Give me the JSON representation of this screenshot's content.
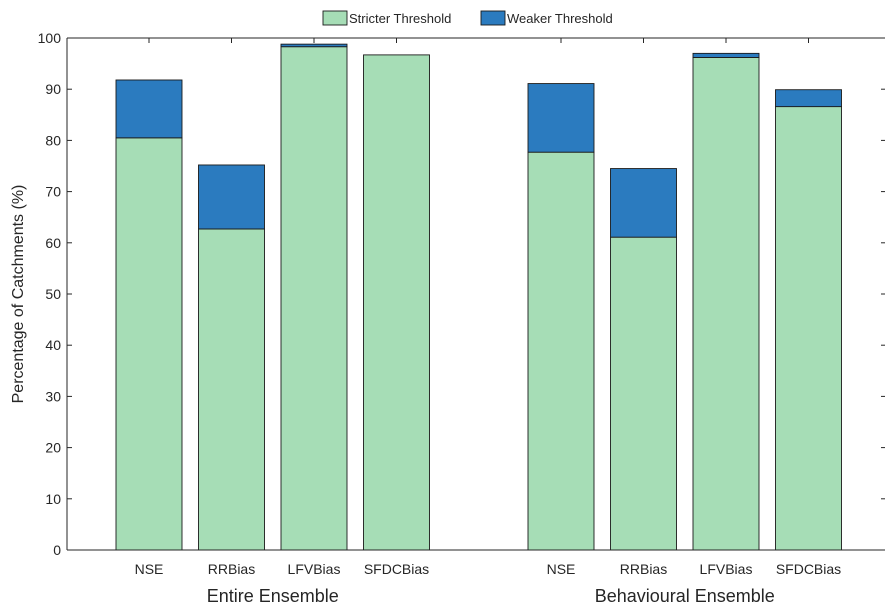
{
  "chart_data": {
    "type": "bar",
    "stacked": true,
    "groups": [
      {
        "label": "Entire Ensemble",
        "categories": [
          "NSE",
          "RRBias",
          "LFVBias",
          "SFDCBias"
        ]
      },
      {
        "label": "Behavioural Ensemble",
        "categories": [
          "NSE",
          "RRBias",
          "LFVBias",
          "SFDCBias"
        ]
      }
    ],
    "series": [
      {
        "name": "Stricter Threshold",
        "color": "#a6ddb6",
        "values": [
          [
            80.5,
            62.7,
            98.3,
            96.7
          ],
          [
            77.7,
            61.1,
            96.2,
            86.6
          ]
        ]
      },
      {
        "name": "Weaker Threshold",
        "color": "#2b7bbf",
        "values": [
          [
            11.3,
            12.5,
            0.5,
            0.0
          ],
          [
            13.4,
            13.4,
            0.8,
            3.3
          ]
        ]
      }
    ],
    "totals": [
      [
        91.8,
        75.2,
        98.8,
        96.7
      ],
      [
        91.1,
        74.5,
        97.0,
        89.9
      ]
    ],
    "ylabel": "Percentage of Catchments (%)",
    "ylim": [
      0,
      100
    ],
    "yticks": [
      0,
      10,
      20,
      30,
      40,
      50,
      60,
      70,
      80,
      90,
      100
    ],
    "grid": false,
    "legend_position": "top-center"
  }
}
